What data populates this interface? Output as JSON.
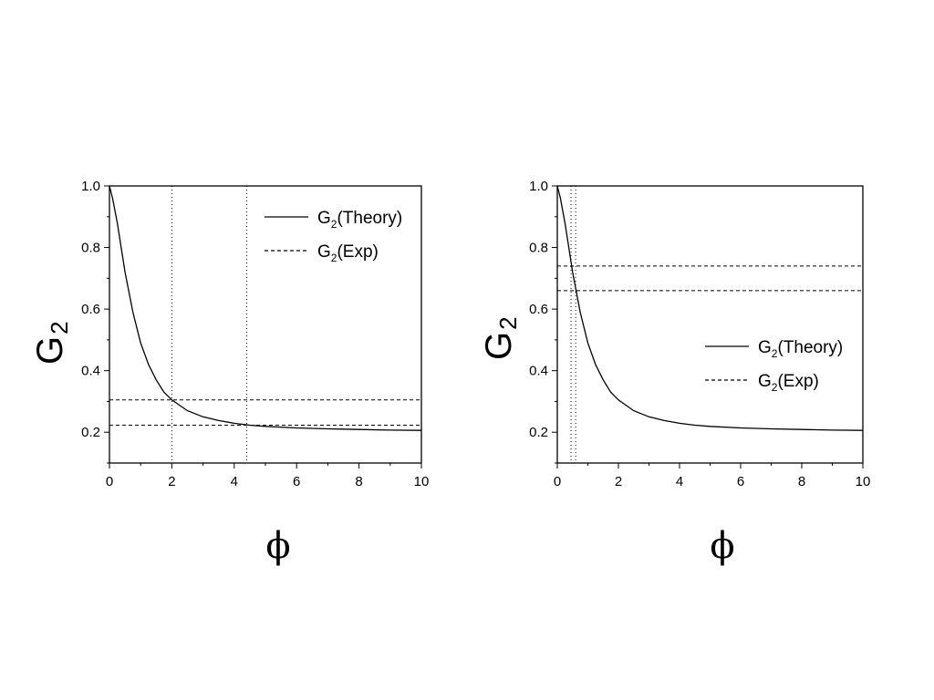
{
  "chart_data": [
    {
      "type": "line",
      "xlabel": "ϕ",
      "ylabel": {
        "main": "G",
        "sub": "2"
      },
      "xlim": [
        0,
        10
      ],
      "ylim": [
        0.1,
        1.0
      ],
      "xticks": [
        "0",
        "2",
        "4",
        "6",
        "8",
        "10"
      ],
      "yticks": [
        "0.2",
        "0.4",
        "0.6",
        "0.8",
        "1.0"
      ],
      "grid": false,
      "legend_position": "top-right",
      "series": [
        {
          "name": {
            "main": "G",
            "sub": "2",
            "rest": "(Theory)"
          },
          "style": "solid",
          "x": [
            0,
            0.1,
            0.25,
            0.5,
            0.75,
            1.0,
            1.25,
            1.5,
            1.75,
            2.0,
            2.5,
            3.0,
            3.5,
            4.0,
            4.5,
            5.0,
            6.0,
            7.0,
            8.0,
            9.0,
            10.0
          ],
          "y": [
            1.0,
            0.96,
            0.88,
            0.72,
            0.59,
            0.49,
            0.42,
            0.37,
            0.33,
            0.305,
            0.27,
            0.25,
            0.238,
            0.229,
            0.223,
            0.219,
            0.214,
            0.211,
            0.209,
            0.207,
            0.206
          ]
        },
        {
          "name": {
            "main": "G",
            "sub": "2",
            "rest": "(Exp)"
          },
          "style": "dashed",
          "hlines": [
            0.305,
            0.223
          ]
        }
      ],
      "vlines": [
        2.0,
        4.4
      ]
    },
    {
      "type": "line",
      "xlabel": "ϕ",
      "ylabel": {
        "main": "G",
        "sub": "2"
      },
      "xlim": [
        0,
        10
      ],
      "ylim": [
        0.1,
        1.0
      ],
      "xticks": [
        "0",
        "2",
        "4",
        "6",
        "8",
        "10"
      ],
      "yticks": [
        "0.2",
        "0.4",
        "0.6",
        "0.8",
        "1.0"
      ],
      "grid": false,
      "legend_position": "center-right",
      "series": [
        {
          "name": {
            "main": "G",
            "sub": "2",
            "rest": "(Theory)"
          },
          "style": "solid",
          "x": [
            0,
            0.1,
            0.25,
            0.5,
            0.75,
            1.0,
            1.25,
            1.5,
            1.75,
            2.0,
            2.5,
            3.0,
            3.5,
            4.0,
            4.5,
            5.0,
            6.0,
            7.0,
            8.0,
            9.0,
            10.0
          ],
          "y": [
            1.0,
            0.96,
            0.88,
            0.72,
            0.59,
            0.49,
            0.42,
            0.37,
            0.33,
            0.305,
            0.27,
            0.25,
            0.238,
            0.229,
            0.223,
            0.219,
            0.214,
            0.211,
            0.209,
            0.207,
            0.206
          ]
        },
        {
          "name": {
            "main": "G",
            "sub": "2",
            "rest": "(Exp)"
          },
          "style": "dashed",
          "hlines": [
            0.74,
            0.66
          ]
        }
      ],
      "vlines": [
        0.45,
        0.6
      ]
    }
  ]
}
